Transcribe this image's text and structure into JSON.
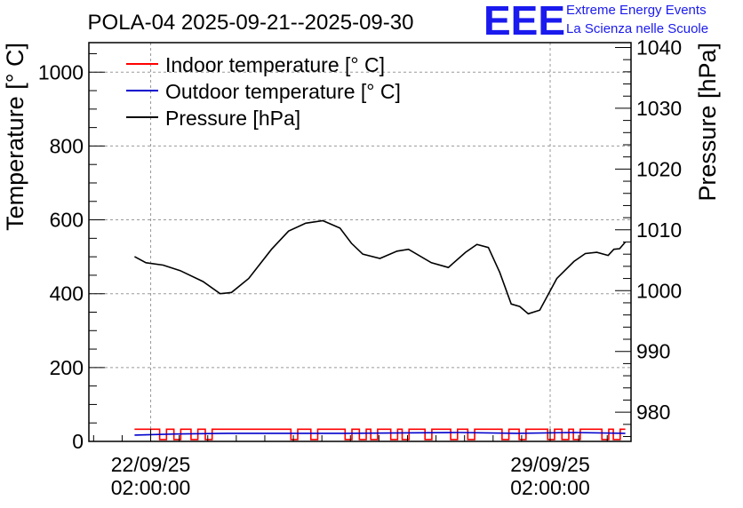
{
  "header": {
    "title": "POLA-04 2025-09-21--2025-09-30"
  },
  "logo": {
    "letters": "EEE",
    "line1": "Extreme Energy Events",
    "line2": "La Scienza nelle Scuole"
  },
  "colors": {
    "indoor": "#ff0000",
    "outdoor": "#0000cc",
    "pressure": "#000000",
    "grid": "#999999",
    "logo": "#1a1aee"
  },
  "chart_data": {
    "type": "line",
    "title": "POLA-04 2025-09-21--2025-09-30",
    "ylabel": "Temperature [° C]",
    "y2label": "Pressure [hPa]",
    "xlabel": "",
    "xlim": [
      0,
      9.5
    ],
    "ylim": [
      0,
      1080
    ],
    "y2lim": [
      975.2,
      1040.8
    ],
    "x_unit": "days since 2025-09-21 00:00",
    "grid": true,
    "legend_position": "top-left",
    "x_ticks": [
      {
        "x": 1.083,
        "label_line1": "22/09/25",
        "label_line2": "02:00:00"
      },
      {
        "x": 8.083,
        "label_line1": "29/09/25",
        "label_line2": "02:00:00"
      }
    ],
    "y_ticks": [
      0,
      200,
      400,
      600,
      800,
      1000
    ],
    "y2_ticks": [
      980,
      990,
      1000,
      1010,
      1020,
      1030,
      1040
    ],
    "legend": [
      {
        "name": "Indoor temperature [° C]",
        "color": "#ff0000"
      },
      {
        "name": "Outdoor temperature [° C]",
        "color": "#0000cc"
      },
      {
        "name": "Pressure [hPa]",
        "color": "#000000"
      }
    ],
    "series": [
      {
        "name": "Indoor temperature [° C]",
        "axis": "left",
        "color": "#ff0000",
        "base_value": 33,
        "dropout_value": 5,
        "dropouts": [
          1.3,
          1.55,
          1.85,
          2.1,
          3.6,
          3.95,
          4.55,
          4.8,
          5.0,
          5.35,
          5.55,
          5.95,
          6.4,
          6.7,
          7.3,
          7.6,
          8.1,
          8.35,
          8.55,
          9.05,
          9.25
        ],
        "x": [
          0.8,
          9.4
        ],
        "values": [
          33,
          33
        ]
      },
      {
        "name": "Outdoor temperature [° C]",
        "axis": "left",
        "color": "#0000cc",
        "x": [
          0.8,
          1.5,
          2.5,
          3.5,
          4.5,
          5.5,
          6.5,
          7.5,
          8.5,
          9.4
        ],
        "values": [
          17,
          20,
          22,
          22,
          22,
          23,
          24,
          22,
          24,
          22
        ]
      },
      {
        "name": "Pressure [hPa]",
        "axis": "right",
        "color": "#000000",
        "x": [
          0.8,
          1.0,
          1.3,
          1.6,
          2.0,
          2.3,
          2.5,
          2.8,
          3.2,
          3.5,
          3.8,
          4.1,
          4.4,
          4.6,
          4.8,
          5.1,
          5.4,
          5.6,
          6.0,
          6.3,
          6.6,
          6.8,
          7.0,
          7.2,
          7.4,
          7.55,
          7.7,
          7.9,
          8.2,
          8.5,
          8.7,
          8.9,
          9.1,
          9.2,
          9.3,
          9.4
        ],
        "values": [
          1005.6,
          1004.6,
          1004.2,
          1003.3,
          1001.5,
          999.5,
          999.7,
          1002.0,
          1006.8,
          1009.8,
          1011.1,
          1011.5,
          1010.3,
          1007.8,
          1006.0,
          1005.3,
          1006.5,
          1006.8,
          1004.6,
          1003.8,
          1006.3,
          1007.6,
          1007.1,
          1003.0,
          997.8,
          997.4,
          996.2,
          996.8,
          1002.0,
          1004.8,
          1006.1,
          1006.3,
          1005.8,
          1006.8,
          1006.9,
          1008.0
        ]
      }
    ]
  }
}
